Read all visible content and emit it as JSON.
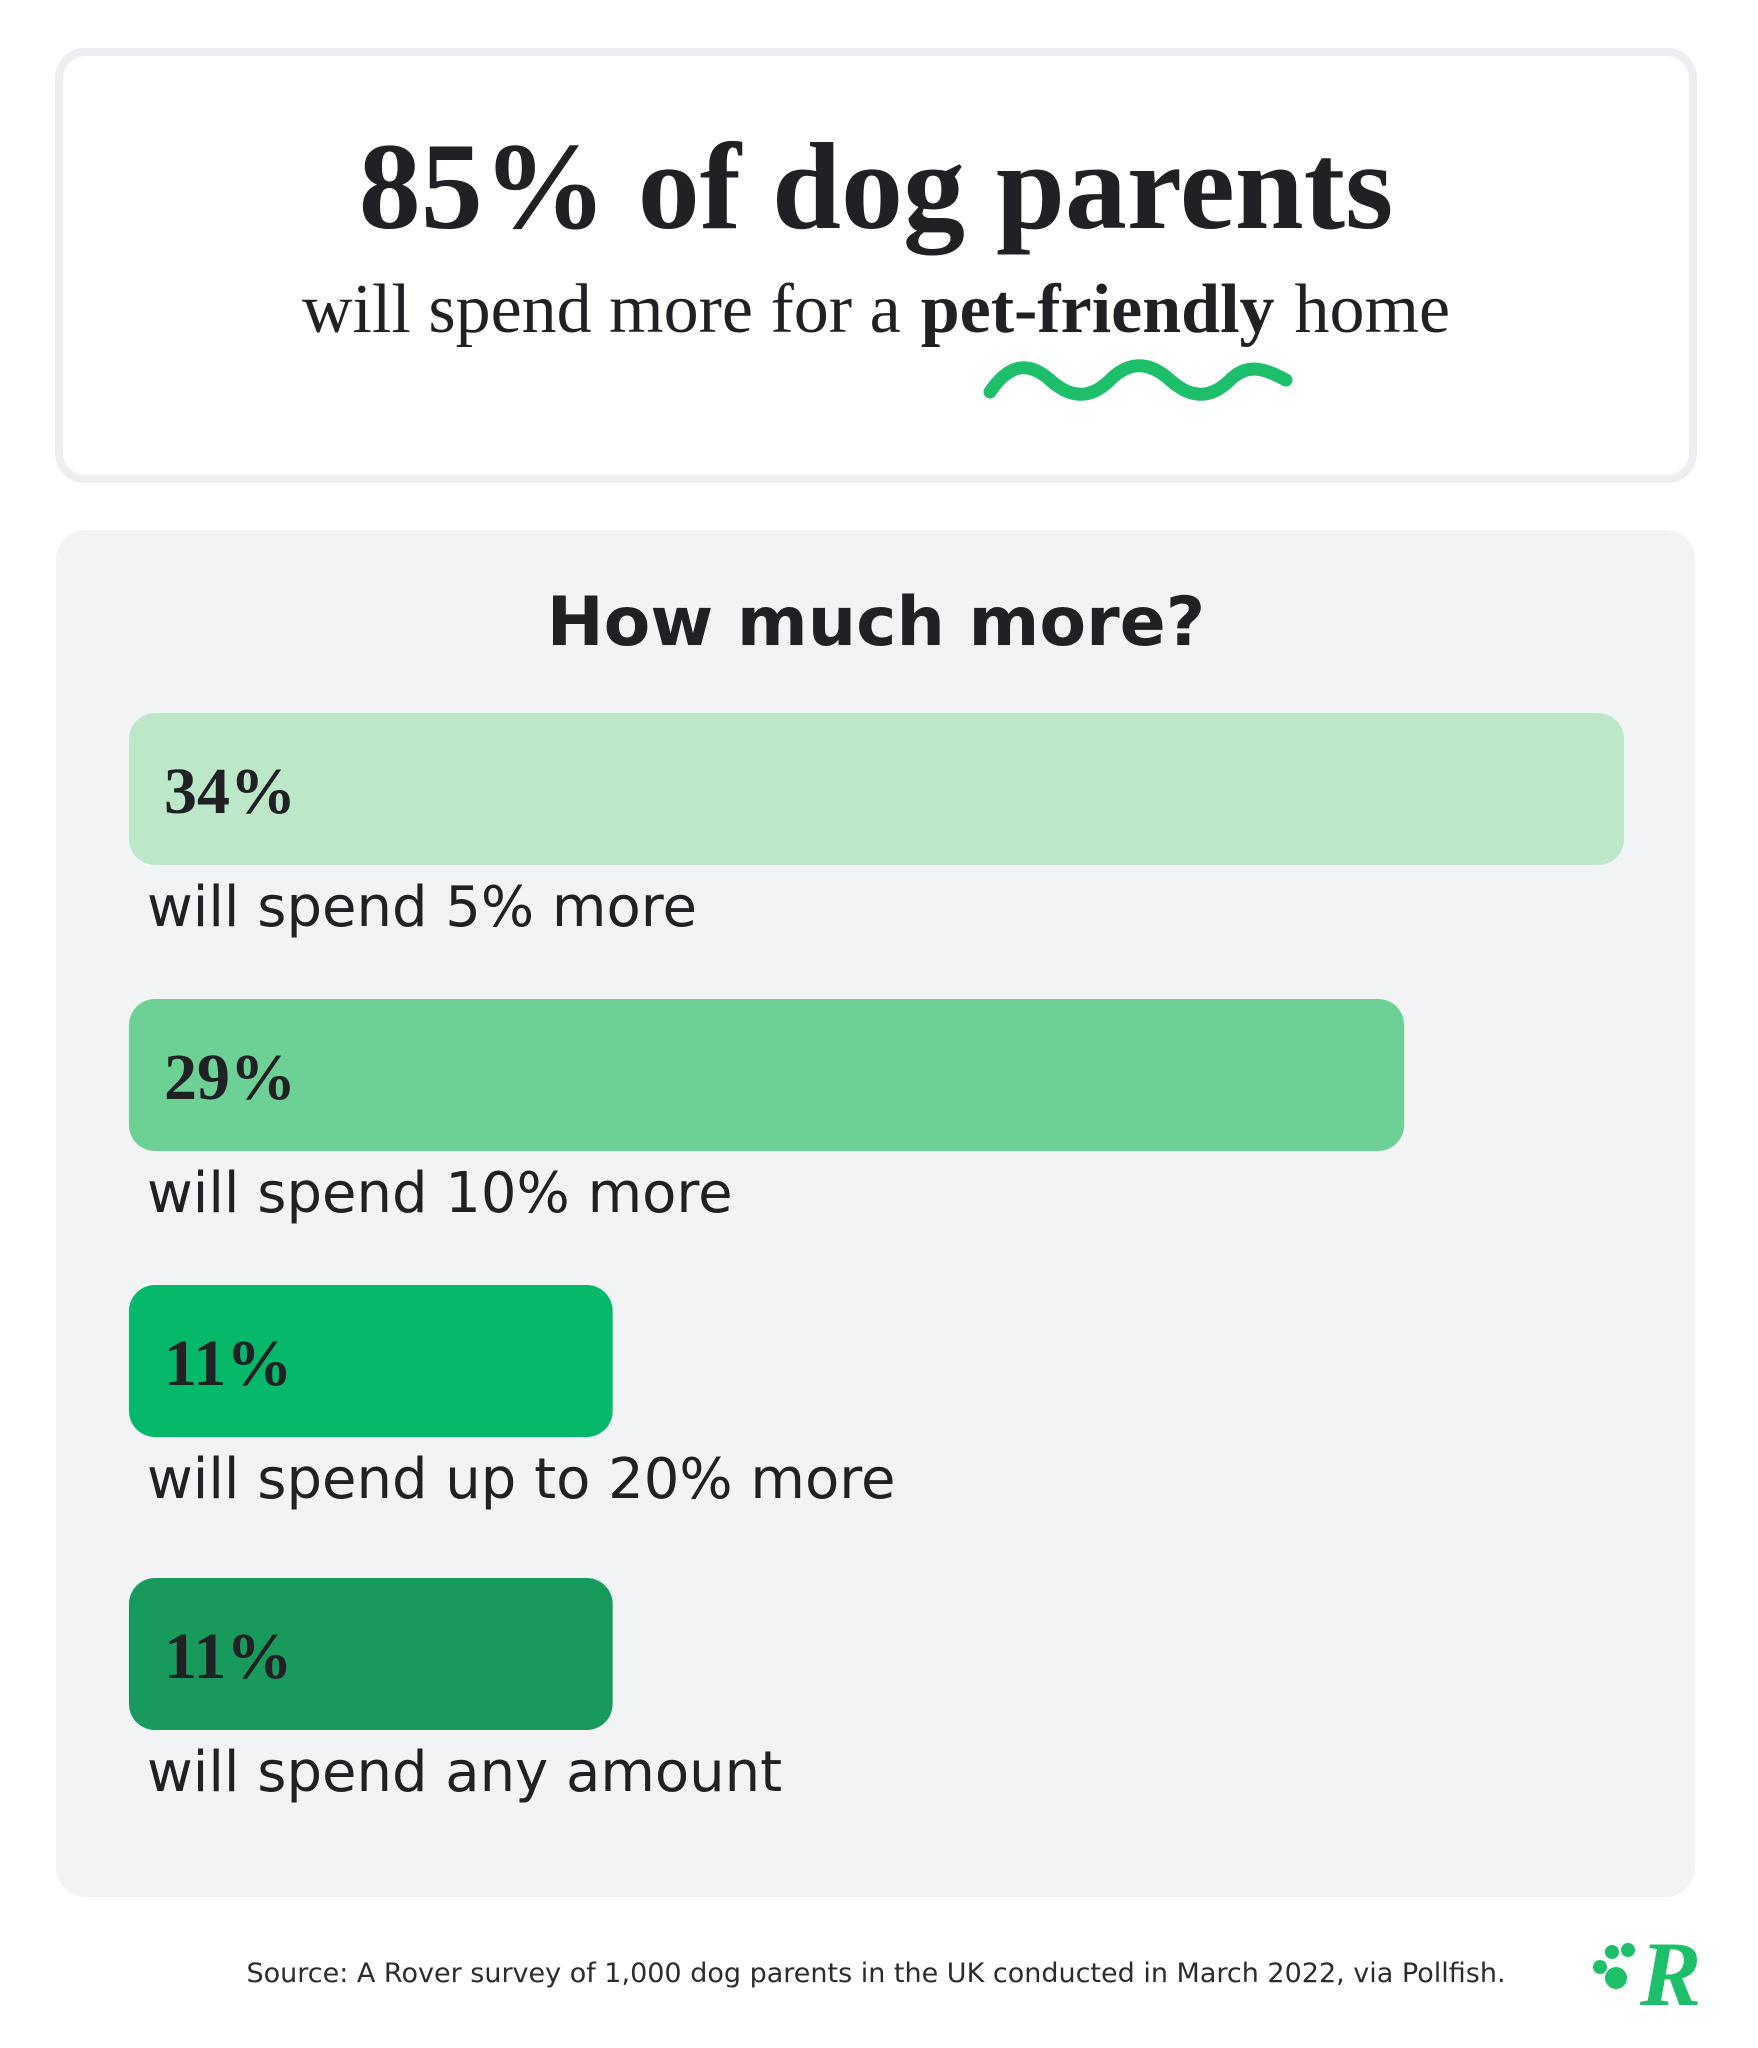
{
  "chart_data": {
    "type": "bar",
    "orientation": "horizontal",
    "title": "85% of dog parents",
    "subtitle": [
      "will spend more for a",
      "pet-friendly",
      "home"
    ],
    "chart_title": "How much more?",
    "categories": [
      "will spend 5% more",
      "will spend 10% more",
      "will spend up to 20% more",
      "will spend any amount"
    ],
    "values": [
      34,
      29,
      11,
      11
    ],
    "value_labels": [
      "34%",
      "29%",
      "11%",
      "11%"
    ],
    "colors": [
      "#bce8c9",
      "#6dd196",
      "#06b86a",
      "#179a5b"
    ],
    "source": "Source: A Rover survey of 1,000 dog parents in the UK conducted in March 2022, via Pollfish.",
    "logo": "R"
  }
}
